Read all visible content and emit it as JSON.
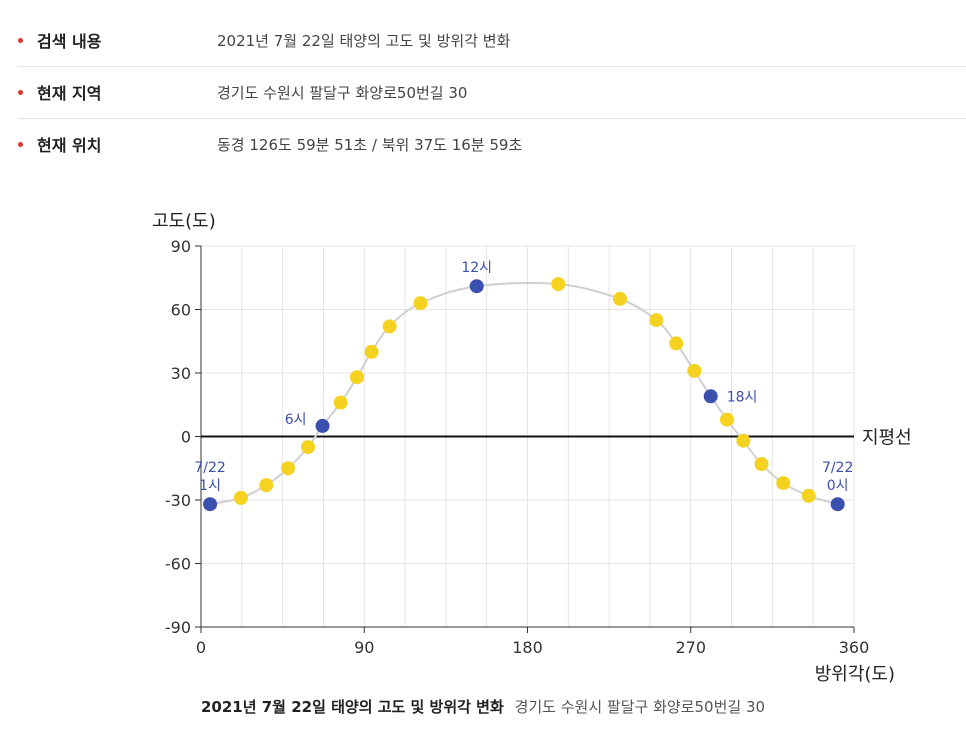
{
  "info": {
    "rows": [
      {
        "label": "검색 내용",
        "value": "2021년 7월 22일 태양의 고도 및 방위각 변화"
      },
      {
        "label": "현재 지역",
        "value": "경기도 수원시 팔달구 화양로50번길 30"
      },
      {
        "label": "현재 위치",
        "value": "동경 126도 59분 51초 / 북위 37도 16분 59초"
      }
    ],
    "bullet_color": "#e0352b"
  },
  "chart_data": {
    "type": "scatter",
    "ylabel": "고도(도)",
    "xlabel": "방위각(도)",
    "xlim": [
      0,
      360
    ],
    "ylim": [
      -90,
      90
    ],
    "xticks": [
      0,
      90,
      180,
      270,
      360
    ],
    "yticks": [
      90,
      60,
      30,
      0,
      -30,
      -60,
      -90
    ],
    "horizon_label": "지평선",
    "grid": true,
    "curve_color": "#d0d0d0",
    "point_color": "#f5d21f",
    "highlight_color": "#3b4fae",
    "points": [
      {
        "x": 5,
        "y": -32
      },
      {
        "x": 22,
        "y": -29
      },
      {
        "x": 36,
        "y": -23
      },
      {
        "x": 48,
        "y": -15
      },
      {
        "x": 59,
        "y": -5
      },
      {
        "x": 67,
        "y": 5
      },
      {
        "x": 77,
        "y": 16
      },
      {
        "x": 86,
        "y": 28
      },
      {
        "x": 94,
        "y": 40
      },
      {
        "x": 104,
        "y": 52
      },
      {
        "x": 121,
        "y": 63
      },
      {
        "x": 152,
        "y": 71
      },
      {
        "x": 197,
        "y": 72
      },
      {
        "x": 231,
        "y": 65
      },
      {
        "x": 251,
        "y": 55
      },
      {
        "x": 262,
        "y": 44
      },
      {
        "x": 272,
        "y": 31
      },
      {
        "x": 281,
        "y": 19
      },
      {
        "x": 290,
        "y": 8
      },
      {
        "x": 299,
        "y": -2
      },
      {
        "x": 309,
        "y": -13
      },
      {
        "x": 321,
        "y": -22
      },
      {
        "x": 335,
        "y": -28
      },
      {
        "x": 351,
        "y": -32
      }
    ],
    "highlights": [
      {
        "index": 0,
        "label": "7/22\n1시",
        "pos": "above"
      },
      {
        "index": 5,
        "label": "6시",
        "pos": "left"
      },
      {
        "index": 11,
        "label": "12시",
        "pos": "above"
      },
      {
        "index": 17,
        "label": "18시",
        "pos": "right"
      },
      {
        "index": 23,
        "label": "7/22\n0시",
        "pos": "above"
      }
    ]
  },
  "caption": {
    "title": "2021년 7월 22일 태양의 고도 및 방위각 변화",
    "subtitle": "경기도 수원시 팔달구 화양로50번길 30"
  }
}
